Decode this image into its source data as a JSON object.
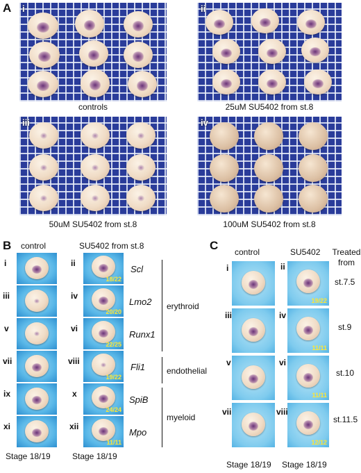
{
  "panel_a": {
    "letter": "A",
    "photos": [
      {
        "roman": "i",
        "caption": "controls"
      },
      {
        "roman": "ii",
        "caption": "25uM SU5402 from st.8"
      },
      {
        "roman": "iii",
        "caption": "50uM SU5402 from st.8"
      },
      {
        "roman": "iv",
        "caption": "100uM SU5402 from st.8"
      }
    ]
  },
  "panel_b": {
    "letter": "B",
    "col_control": "control",
    "col_treated": "SU5402 from st.8",
    "control_romans": [
      "i",
      "iii",
      "v",
      "vii",
      "ix",
      "xi"
    ],
    "treated_romans": [
      "ii",
      "iv",
      "vi",
      "viii",
      "x",
      "xii"
    ],
    "counts": [
      "18/22",
      "20/20",
      "22/25",
      "19/22",
      "24/24",
      "11/11"
    ],
    "genes": [
      "Scl",
      "Lmo2",
      "Runx1",
      "Fli1",
      "SpiB",
      "Mpo"
    ],
    "groups": [
      "erythroid",
      "endothelial",
      "myeloid"
    ],
    "stage_control": "Stage 18/19",
    "stage_treated": "Stage 18/19"
  },
  "panel_c": {
    "letter": "C",
    "col_control": "control",
    "col_treated": "SU5402",
    "col_treated_from": "Treated from",
    "control_romans": [
      "i",
      "iii",
      "v",
      "vii"
    ],
    "treated_romans": [
      "ii",
      "iv",
      "vi",
      "viii"
    ],
    "counts": [
      "19/22",
      "11/11",
      "11/11",
      "12/12"
    ],
    "stages": [
      "st.7.5",
      "st.9",
      "st.10",
      "st.11.5"
    ],
    "stage_control": "Stage 18/19",
    "stage_treated": "Stage 18/19"
  }
}
